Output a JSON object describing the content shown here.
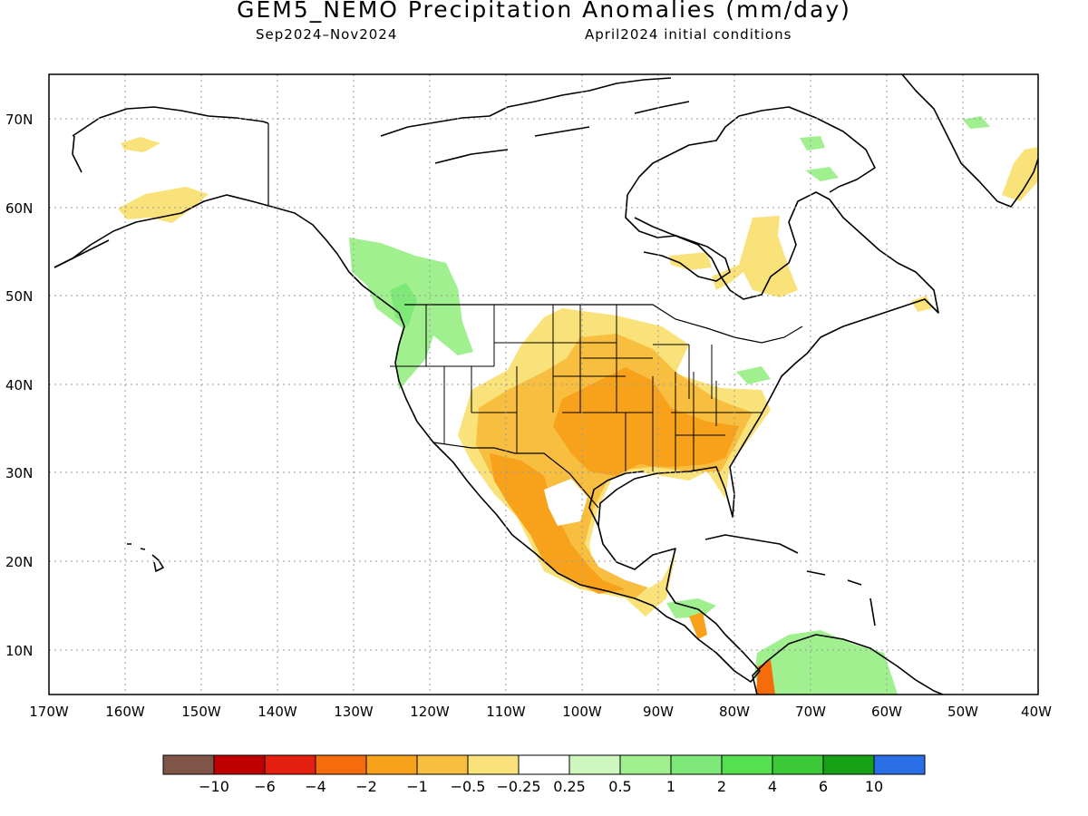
{
  "title": "GEM5_NEMO Precipitation Anomalies (mm/day)",
  "subtitle_left": "Sep2024–Nov2024",
  "subtitle_right": "April2024 initial conditions",
  "axes": {
    "longitudes": [
      "170W",
      "160W",
      "150W",
      "140W",
      "130W",
      "120W",
      "110W",
      "100W",
      "90W",
      "80W",
      "70W",
      "60W",
      "50W",
      "40W"
    ],
    "latitudes": [
      "70N",
      "60N",
      "50N",
      "40N",
      "30N",
      "20N",
      "10N"
    ],
    "gridlines": true,
    "grid_style": "dotted"
  },
  "colorbar": {
    "colors": [
      "#7f5548",
      "#c00000",
      "#e51f10",
      "#f56d0a",
      "#f8a11a",
      "#f7be3f",
      "#fae27a",
      "#ffffff",
      "#cdf7bf",
      "#a0f08f",
      "#7ee878",
      "#55e14f",
      "#3cc938",
      "#16a117",
      "#2a6fe8"
    ],
    "tick_labels": [
      "−10",
      "−6",
      "−4",
      "−2",
      "−1",
      "−0.5",
      "−0.25",
      "0.25",
      "0.5",
      "1",
      "2",
      "4",
      "6",
      "10"
    ]
  },
  "map_colors": {
    "dry_light": "#fae27a",
    "dry_medium": "#f7be3f",
    "dry_strong": "#f8a11a",
    "dry_heavy": "#f56d0a",
    "wet_light": "#cdf7bf",
    "wet_medium": "#a0f08f",
    "wet_strong": "#7ee878"
  }
}
